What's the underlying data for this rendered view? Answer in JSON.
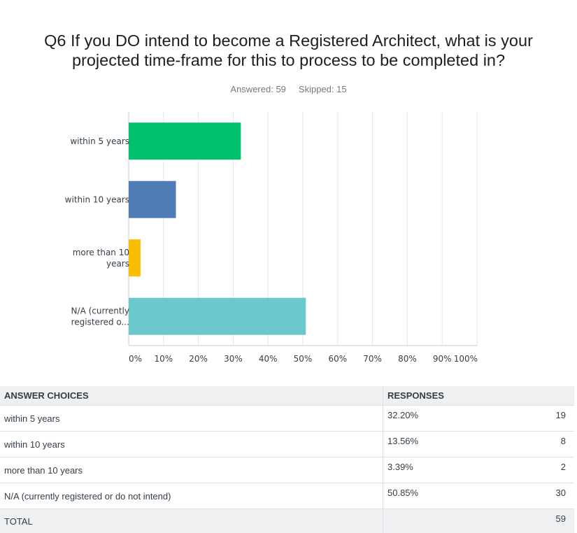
{
  "question": {
    "title_line1": "Q6 If you DO intend to become a Registered Architect, what is your",
    "title_line2": "projected time-frame for this to process to be completed in?",
    "answered_label": "Answered: 59",
    "skipped_label": "Skipped: 15"
  },
  "chart_data": {
    "type": "bar",
    "orientation": "horizontal",
    "categories": [
      "within 5 years",
      "within 10 years",
      "more than 10 years",
      "N/A (currently registered o..."
    ],
    "category_label_lines": [
      [
        "within 5 years"
      ],
      [
        "within 10 years"
      ],
      [
        "more than 10",
        "years"
      ],
      [
        "N/A (currently",
        "registered o..."
      ]
    ],
    "values": [
      32.2,
      13.56,
      3.39,
      50.85
    ],
    "colors": [
      "#00bf6f",
      "#507cb6",
      "#f9be00",
      "#6bc8cd"
    ],
    "x_ticks": [
      "0%",
      "10%",
      "20%",
      "30%",
      "40%",
      "50%",
      "60%",
      "70%",
      "80%",
      "90%",
      "100%"
    ],
    "xlim": [
      0,
      100
    ],
    "grid": true,
    "title": "",
    "xlabel": "",
    "ylabel": ""
  },
  "table": {
    "headers": {
      "choices": "ANSWER CHOICES",
      "responses": "RESPONSES"
    },
    "rows": [
      {
        "choice": "within 5 years",
        "percent": "32.20%",
        "count": "19"
      },
      {
        "choice": "within 10 years",
        "percent": "13.56%",
        "count": "8"
      },
      {
        "choice": "more than 10 years",
        "percent": "3.39%",
        "count": "2"
      },
      {
        "choice": "N/A (currently registered or do not intend)",
        "percent": "50.85%",
        "count": "30"
      }
    ],
    "total": {
      "label": "TOTAL",
      "count": "59"
    }
  }
}
